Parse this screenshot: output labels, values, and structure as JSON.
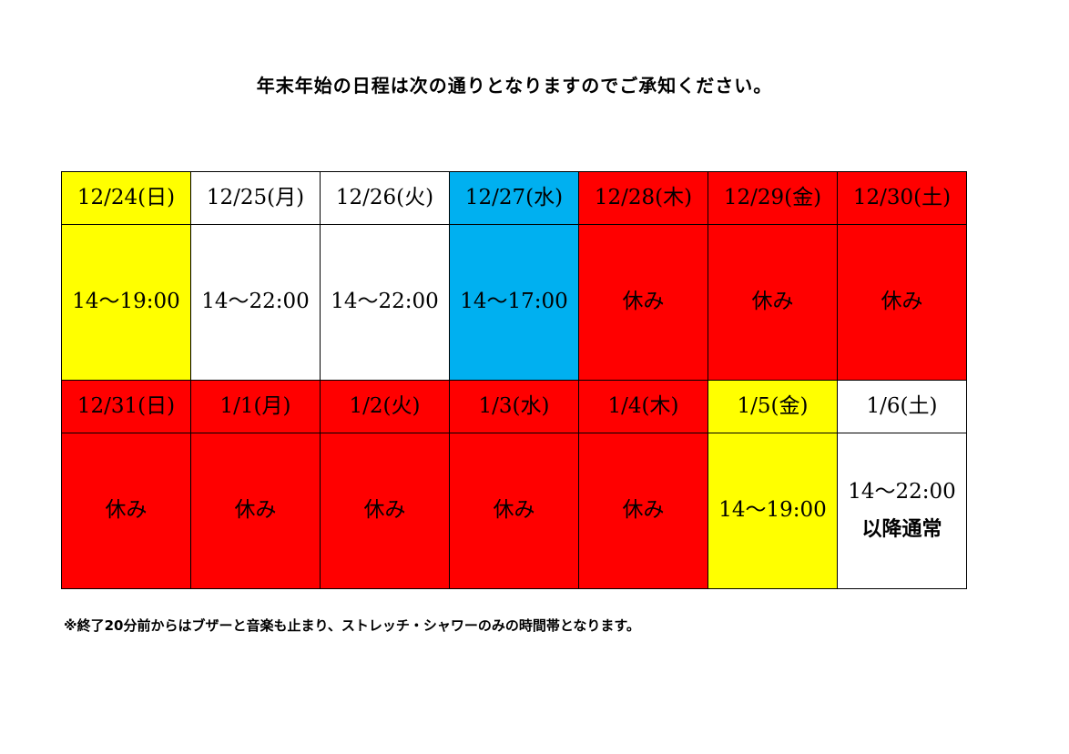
{
  "heading": "年末年始の日程は次の通りとなりますのでご承知ください。",
  "colors": {
    "yellow": "#ffff00",
    "white": "#ffffff",
    "blue": "#00b0f0",
    "red": "#ff0000"
  },
  "weeks": [
    {
      "days": [
        {
          "date": "12/24(日)",
          "hours": "14〜19:00",
          "color": "yellow"
        },
        {
          "date": "12/25(月)",
          "hours": "14〜22:00",
          "color": "white"
        },
        {
          "date": "12/26(火)",
          "hours": "14〜22:00",
          "color": "white"
        },
        {
          "date": "12/27(水)",
          "hours": "14〜17:00",
          "color": "blue"
        },
        {
          "date": "12/28(木)",
          "hours": "休み",
          "color": "red"
        },
        {
          "date": "12/29(金)",
          "hours": "休み",
          "color": "red"
        },
        {
          "date": "12/30(土)",
          "hours": "休み",
          "color": "red"
        }
      ]
    },
    {
      "days": [
        {
          "date": "12/31(日)",
          "hours": "休み",
          "color": "red"
        },
        {
          "date": "1/1(月)",
          "hours": "休み",
          "color": "red"
        },
        {
          "date": "1/2(火)",
          "hours": "休み",
          "color": "red"
        },
        {
          "date": "1/3(水)",
          "hours": "休み",
          "color": "red"
        },
        {
          "date": "1/4(木)",
          "hours": "休み",
          "color": "red"
        },
        {
          "date": "1/5(金)",
          "hours": "14〜19:00",
          "color": "yellow"
        },
        {
          "date": "1/6(土)",
          "hours": "14〜22:00",
          "note": "以降通常",
          "color": "white"
        }
      ]
    }
  ],
  "footnote": "※終了20分前からはブザーと音楽も止まり、ストレッチ・シャワーのみの時間帯となります。"
}
